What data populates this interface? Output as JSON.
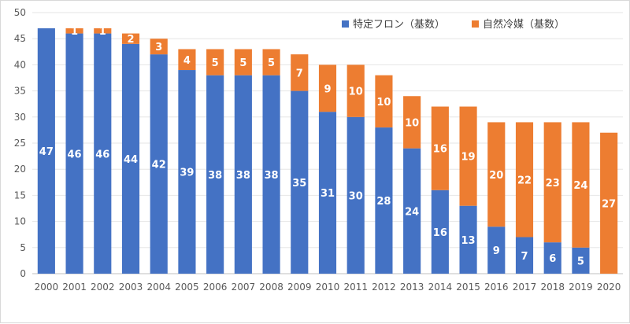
{
  "chart_data": {
    "type": "bar",
    "stacked": true,
    "title": "",
    "xlabel": "",
    "ylabel": "",
    "ylim": [
      0,
      50
    ],
    "yticks": [
      0,
      5,
      10,
      15,
      20,
      25,
      30,
      35,
      40,
      45,
      50
    ],
    "grid": true,
    "legend_position": "top-right",
    "categories": [
      "2000",
      "2001",
      "2002",
      "2003",
      "2004",
      "2005",
      "2006",
      "2007",
      "2008",
      "2009",
      "2010",
      "2011",
      "2012",
      "2013",
      "2014",
      "2015",
      "2016",
      "2017",
      "2018",
      "2019",
      "2020"
    ],
    "series": [
      {
        "name": "特定フロン（基数）",
        "color": "#4472C4",
        "values": [
          47,
          46,
          46,
          44,
          42,
          39,
          38,
          38,
          38,
          35,
          31,
          30,
          28,
          24,
          16,
          13,
          9,
          7,
          6,
          5,
          0
        ]
      },
      {
        "name": "自然冷媒（基数）",
        "color": "#ED7D31",
        "values": [
          0,
          1,
          1,
          2,
          3,
          4,
          5,
          5,
          5,
          7,
          9,
          10,
          10,
          10,
          16,
          19,
          20,
          22,
          23,
          24,
          27
        ]
      }
    ]
  }
}
